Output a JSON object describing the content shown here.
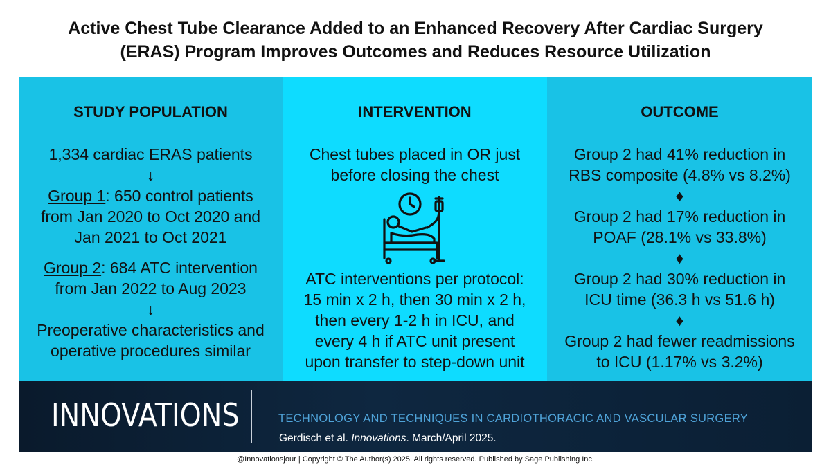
{
  "title": {
    "line1": "Active Chest Tube Clearance Added to an Enhanced Recovery After Cardiac Surgery",
    "line2": "(ERAS) Program Improves Outcomes and Reduces Resource Utilization"
  },
  "study_population": {
    "heading": "STUDY POPULATION",
    "patients": "1,334 cardiac ERAS patients",
    "arrow1": "↓",
    "group1_label": "Group 1",
    "group1_line1": ": 650 control patients",
    "group1_line2": "from Jan 2020 to Oct 2020 and",
    "group1_line3": "Jan 2021 to Oct 2021",
    "group2_label": "Group 2",
    "group2_line1": ": 684 ATC intervention",
    "group2_line2": "from Jan 2022 to Aug 2023",
    "arrow2": "↓",
    "similar_line1": "Preoperative characteristics and",
    "similar_line2": "operative procedures similar"
  },
  "intervention": {
    "heading": "INTERVENTION",
    "placement_line1": "Chest tubes placed in OR just",
    "placement_line2": "before closing the chest",
    "icon": "patient-bed-clock-iv-icon",
    "protocol_line1": "ATC interventions per protocol:",
    "protocol_line2": "15 min x 2 h, then 30 min x 2 h,",
    "protocol_line3": "then every 1-2 h in ICU, and",
    "protocol_line4": "every 4 h if ATC unit present",
    "protocol_line5": "upon transfer to step-down unit"
  },
  "outcome": {
    "heading": "OUTCOME",
    "o1_line1": "Group 2 had 41% reduction in",
    "o1_line2": "RBS composite (4.8% vs 8.2%)",
    "sep1": "♦",
    "o2_line1": "Group 2 had 17% reduction in",
    "o2_line2": "POAF (28.1% vs 33.8%)",
    "sep2": "♦",
    "o3_line1": "Group 2 had 30% reduction in",
    "o3_line2": "ICU time (36.3 h vs 51.6 h)",
    "sep3": "♦",
    "o4_line1": "Group 2 had fewer readmissions",
    "o4_line2": "to ICU (1.17% vs 3.2%)"
  },
  "footer": {
    "brand": "INNOVATIONS",
    "tagline": "TECHNOLOGY AND TECHNIQUES IN CARDIOTHORACIC AND VASCULAR SURGERY",
    "citation_authors": "Gerdisch et al. ",
    "citation_journal": "Innovations",
    "citation_date": ". March/April 2025."
  },
  "copyright": "@Innovationsjour | Copyright © The Author(s) 2025. All rights reserved. Published by Sage Publishing Inc.",
  "colors": {
    "panel_side": "#19c2e6",
    "panel_center": "#0edcff",
    "footer_bg": "#0e2740",
    "tagline": "#4fa3d8"
  }
}
